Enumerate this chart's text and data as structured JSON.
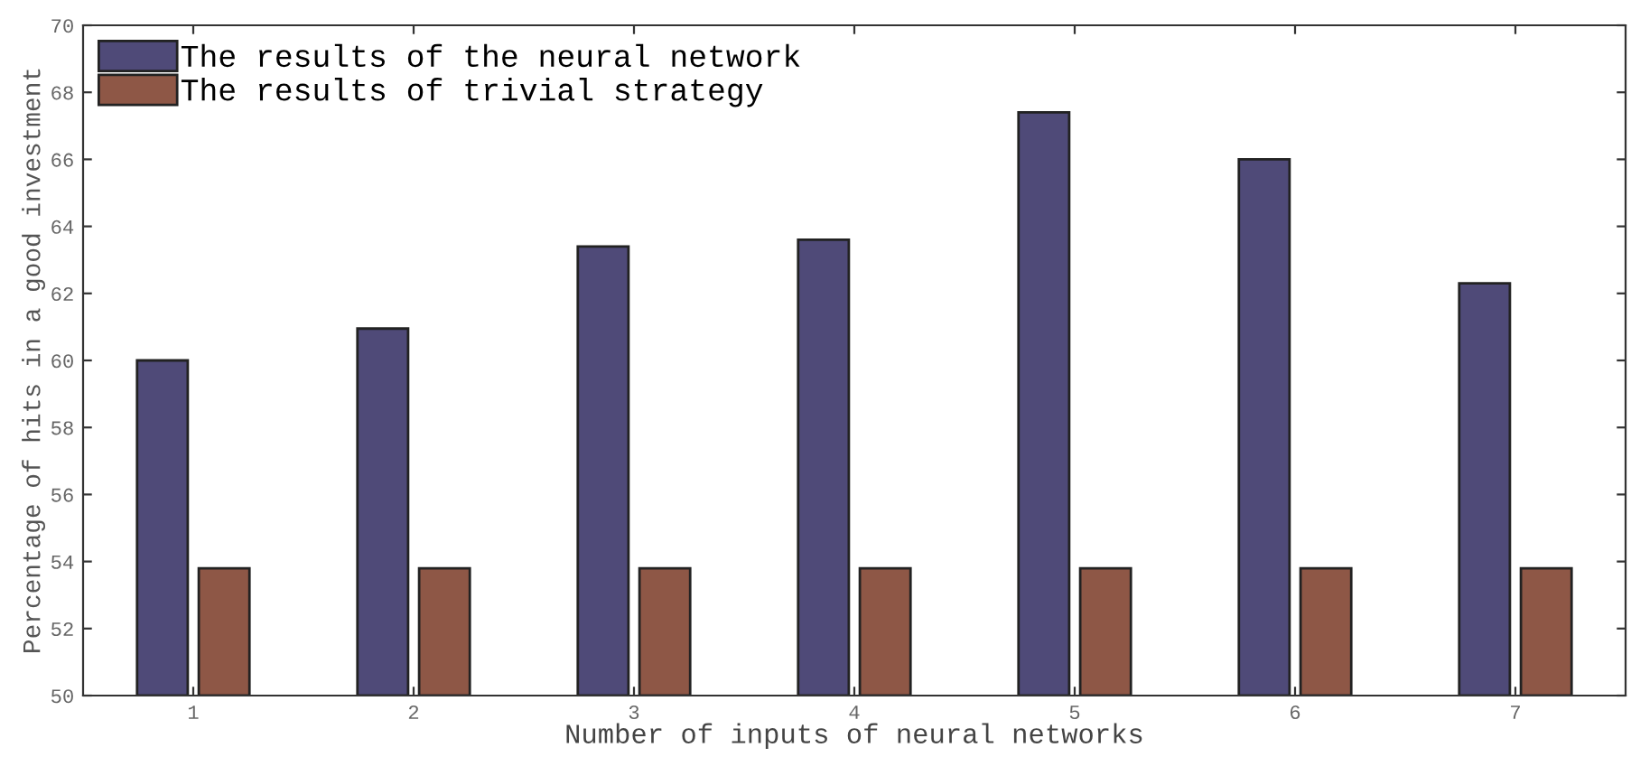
{
  "chart_data": {
    "type": "bar",
    "xlabel": "Number of inputs of neural networks",
    "ylabel": "Percentage of hits in a good investment",
    "categories": [
      "1",
      "2",
      "3",
      "4",
      "5",
      "6",
      "7"
    ],
    "series": [
      {
        "name": "The results of the neural network",
        "color": "#4f4a78",
        "values": [
          60.0,
          60.95,
          63.4,
          63.6,
          67.4,
          66.0,
          62.3
        ]
      },
      {
        "name": "The results of trivial strategy",
        "color": "#8e5746",
        "values": [
          53.8,
          53.8,
          53.8,
          53.8,
          53.8,
          53.8,
          53.8
        ]
      }
    ],
    "ylim": [
      50,
      70
    ],
    "yticks": [
      50,
      52,
      54,
      56,
      58,
      60,
      62,
      64,
      66,
      68,
      70
    ],
    "grid": false,
    "legend": "top left"
  }
}
